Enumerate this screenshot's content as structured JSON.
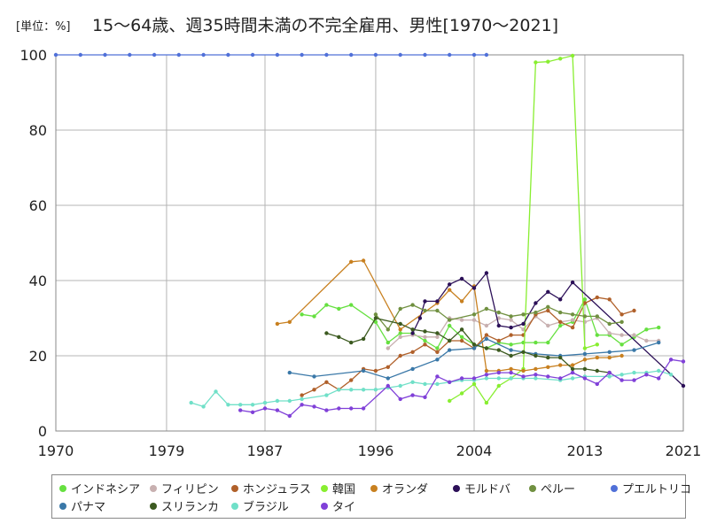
{
  "chart_data": {
    "type": "line",
    "title_unit": "[単位：%]",
    "title": "15～64歳、週35時間未満の不完全雇用、男性[1970～2021]",
    "xlabel": "",
    "ylabel": "",
    "xlim": [
      1970,
      2021
    ],
    "ylim": [
      0,
      100
    ],
    "x_ticks": [
      "1970",
      "1979",
      "1987",
      "1996",
      "2004",
      "2013",
      "2021"
    ],
    "y_ticks": [
      "0",
      "20",
      "40",
      "60",
      "80",
      "100"
    ],
    "grid": true,
    "legend_position": "bottom",
    "series": [
      {
        "name": "インドネシア",
        "color": "#66e040",
        "points": [
          [
            1990,
            31
          ],
          [
            1991,
            30.5
          ],
          [
            1992,
            33.5
          ],
          [
            1993,
            32.5
          ],
          [
            1994,
            33.5
          ],
          [
            1996,
            29
          ],
          [
            1997,
            23.5
          ],
          [
            1998,
            26
          ],
          [
            1999,
            26
          ],
          [
            2000,
            24
          ],
          [
            2001,
            22
          ],
          [
            2002,
            28
          ],
          [
            2003,
            25
          ],
          [
            2004,
            23
          ],
          [
            2005,
            22
          ],
          [
            2006,
            23.5
          ],
          [
            2007,
            23
          ],
          [
            2008,
            23.5
          ],
          [
            2009,
            23.5
          ],
          [
            2010,
            23.5
          ],
          [
            2011,
            28
          ],
          [
            2012,
            29
          ],
          [
            2013,
            35
          ],
          [
            2014,
            25.5
          ],
          [
            2015,
            25.5
          ],
          [
            2016,
            23
          ],
          [
            2017,
            25
          ],
          [
            2018,
            27
          ],
          [
            2019,
            27.5
          ]
        ]
      },
      {
        "name": "フィリピン",
        "color": "#c8b0b0",
        "points": [
          [
            1997,
            22
          ],
          [
            1998,
            25
          ],
          [
            1999,
            25.5
          ],
          [
            2000,
            25
          ],
          [
            2001,
            25
          ],
          [
            2002,
            30
          ],
          [
            2003,
            29.5
          ],
          [
            2004,
            29.5
          ],
          [
            2005,
            28
          ],
          [
            2006,
            30
          ],
          [
            2007,
            29.5
          ],
          [
            2008,
            27
          ],
          [
            2009,
            30.5
          ],
          [
            2010,
            28
          ],
          [
            2011,
            29
          ],
          [
            2012,
            29.5
          ],
          [
            2013,
            29
          ],
          [
            2014,
            30
          ],
          [
            2015,
            26
          ],
          [
            2016,
            25.5
          ],
          [
            2017,
            25.5
          ],
          [
            2018,
            24
          ],
          [
            2019,
            24
          ]
        ]
      },
      {
        "name": "ホンジュラス",
        "color": "#b0602a",
        "points": [
          [
            1990,
            9.5
          ],
          [
            1991,
            11
          ],
          [
            1992,
            13
          ],
          [
            1993,
            11
          ],
          [
            1994,
            13.5
          ],
          [
            1995,
            16.5
          ],
          [
            1996,
            16
          ],
          [
            1997,
            17
          ],
          [
            1998,
            20
          ],
          [
            1999,
            21
          ],
          [
            2000,
            23
          ],
          [
            2001,
            21
          ],
          [
            2002,
            24
          ],
          [
            2003,
            24
          ],
          [
            2004,
            22
          ],
          [
            2005,
            25.5
          ],
          [
            2006,
            24
          ],
          [
            2007,
            25.5
          ],
          [
            2008,
            25.5
          ],
          [
            2009,
            31
          ],
          [
            2010,
            32
          ],
          [
            2011,
            29
          ],
          [
            2012,
            27.5
          ],
          [
            2013,
            34
          ],
          [
            2014,
            35.5
          ],
          [
            2015,
            35
          ],
          [
            2016,
            31
          ],
          [
            2017,
            32
          ]
        ]
      },
      {
        "name": "韓国",
        "color": "#88ee30",
        "points": [
          [
            2002,
            8
          ],
          [
            2003,
            10
          ],
          [
            2004,
            12.5
          ],
          [
            2005,
            7.5
          ],
          [
            2006,
            12
          ],
          [
            2007,
            14
          ],
          [
            2008,
            16.5
          ],
          [
            2009,
            98
          ],
          [
            2010,
            98.2
          ],
          [
            2011,
            99
          ],
          [
            2012,
            99.8
          ],
          [
            2013,
            22
          ],
          [
            2014,
            23
          ]
        ]
      },
      {
        "name": "オランダ",
        "color": "#c88020",
        "points": [
          [
            1988,
            28.5
          ],
          [
            1989,
            29
          ],
          [
            1994,
            45
          ],
          [
            1995,
            45.3
          ],
          [
            1998,
            27
          ],
          [
            2001,
            34
          ],
          [
            2002,
            37.5
          ],
          [
            2003,
            34.5
          ],
          [
            2004,
            38.5
          ],
          [
            2005,
            16
          ],
          [
            2006,
            16
          ],
          [
            2007,
            16.5
          ],
          [
            2008,
            16
          ],
          [
            2009,
            16.5
          ],
          [
            2010,
            17
          ],
          [
            2011,
            17.5
          ],
          [
            2012,
            17.5
          ],
          [
            2013,
            19
          ],
          [
            2014,
            19.5
          ],
          [
            2015,
            19.5
          ],
          [
            2016,
            20
          ]
        ]
      },
      {
        "name": "モルドバ",
        "color": "#2c1058",
        "points": [
          [
            1999,
            26
          ],
          [
            1999.6,
            30
          ],
          [
            2000,
            34.5
          ],
          [
            2001,
            34.5
          ],
          [
            2002,
            39
          ],
          [
            2003,
            40.5
          ],
          [
            2004,
            38
          ],
          [
            2005,
            42
          ],
          [
            2006,
            28
          ],
          [
            2007,
            27.5
          ],
          [
            2008,
            28.5
          ],
          [
            2009,
            34
          ],
          [
            2010,
            37
          ],
          [
            2011,
            35
          ],
          [
            2012,
            39.5
          ],
          [
            2021,
            12
          ]
        ]
      },
      {
        "name": "ペルー",
        "color": "#709040",
        "points": [
          [
            1996,
            31
          ],
          [
            1997,
            27
          ],
          [
            1998,
            32.5
          ],
          [
            1999,
            33.5
          ],
          [
            2000,
            32
          ],
          [
            2001,
            32
          ],
          [
            2002,
            29.5
          ],
          [
            2004,
            31
          ],
          [
            2005,
            32.5
          ],
          [
            2006,
            31.5
          ],
          [
            2007,
            30.5
          ],
          [
            2008,
            31
          ],
          [
            2009,
            31.5
          ],
          [
            2010,
            33
          ],
          [
            2011,
            31.5
          ],
          [
            2012,
            31
          ],
          [
            2013,
            30.5
          ],
          [
            2014,
            30.5
          ],
          [
            2015,
            28.5
          ],
          [
            2016,
            29
          ]
        ]
      },
      {
        "name": "プエルトリコ",
        "color": "#5070d8",
        "points": [
          [
            1970,
            100
          ],
          [
            1972,
            100
          ],
          [
            1974,
            100
          ],
          [
            1976,
            100
          ],
          [
            1978,
            100
          ],
          [
            1980,
            100
          ],
          [
            1982,
            100
          ],
          [
            1984,
            100
          ],
          [
            1986,
            100
          ],
          [
            1988,
            100
          ],
          [
            1990,
            100
          ],
          [
            1992,
            100
          ],
          [
            1994,
            100
          ],
          [
            1996,
            100
          ],
          [
            1998,
            100
          ],
          [
            2000,
            100
          ],
          [
            2002,
            100
          ],
          [
            2004,
            100
          ],
          [
            2005,
            100
          ]
        ]
      },
      {
        "name": "パナマ",
        "color": "#3a78a8",
        "points": [
          [
            1989,
            15.5
          ],
          [
            1991,
            14.5
          ],
          [
            1995,
            16
          ],
          [
            1997,
            14
          ],
          [
            1999,
            16.5
          ],
          [
            2001,
            19
          ],
          [
            2002,
            21.5
          ],
          [
            2004,
            22
          ],
          [
            2005,
            24.5
          ],
          [
            2007,
            21.5
          ],
          [
            2009,
            20.5
          ],
          [
            2011,
            20
          ],
          [
            2013,
            20.5
          ],
          [
            2015,
            21
          ],
          [
            2017,
            21.5
          ],
          [
            2019,
            23.5
          ]
        ]
      },
      {
        "name": "スリランカ",
        "color": "#3c5a20",
        "points": [
          [
            1992,
            26
          ],
          [
            1993,
            25
          ],
          [
            1994,
            23.5
          ],
          [
            1995,
            24.5
          ],
          [
            1996,
            30
          ],
          [
            1998,
            28.5
          ],
          [
            1999,
            27
          ],
          [
            2000,
            26.5
          ],
          [
            2001,
            26
          ],
          [
            2002,
            24
          ],
          [
            2003,
            27
          ],
          [
            2004,
            23
          ],
          [
            2005,
            22
          ],
          [
            2006,
            21.5
          ],
          [
            2007,
            20
          ],
          [
            2008,
            21
          ],
          [
            2009,
            20
          ],
          [
            2010,
            19.5
          ],
          [
            2011,
            19.5
          ],
          [
            2012,
            16.5
          ],
          [
            2013,
            16.5
          ],
          [
            2014,
            16
          ],
          [
            2015,
            15.5
          ]
        ]
      },
      {
        "name": "ブラジル",
        "color": "#70e0c8",
        "points": [
          [
            1981,
            7.5
          ],
          [
            1982,
            6.5
          ],
          [
            1983,
            10.5
          ],
          [
            1984,
            7
          ],
          [
            1985,
            7
          ],
          [
            1986,
            7
          ],
          [
            1987,
            7.5
          ],
          [
            1988,
            8
          ],
          [
            1989,
            8
          ],
          [
            1990,
            8.5
          ],
          [
            1992,
            9.5
          ],
          [
            1993,
            11
          ],
          [
            1994,
            11
          ],
          [
            1995,
            11
          ],
          [
            1996,
            11
          ],
          [
            1997,
            11.5
          ],
          [
            1998,
            12
          ],
          [
            1999,
            13
          ],
          [
            2000,
            12.5
          ],
          [
            2001,
            12.5
          ],
          [
            2002,
            13
          ],
          [
            2003,
            13.5
          ],
          [
            2004,
            13.5
          ],
          [
            2005,
            14
          ],
          [
            2006,
            14
          ],
          [
            2007,
            14
          ],
          [
            2008,
            14
          ],
          [
            2009,
            14
          ],
          [
            2011,
            13.5
          ],
          [
            2012,
            14
          ],
          [
            2013,
            14.5
          ],
          [
            2015,
            14.5
          ],
          [
            2016,
            15
          ],
          [
            2017,
            15.5
          ],
          [
            2018,
            15.5
          ],
          [
            2019,
            16
          ],
          [
            2020,
            15
          ]
        ]
      },
      {
        "name": "タイ",
        "color": "#8040d8",
        "points": [
          [
            1985,
            5.5
          ],
          [
            1986,
            5
          ],
          [
            1987,
            6
          ],
          [
            1988,
            5.5
          ],
          [
            1989,
            4
          ],
          [
            1990,
            7
          ],
          [
            1991,
            6.5
          ],
          [
            1992,
            5.5
          ],
          [
            1993,
            6
          ],
          [
            1994,
            6
          ],
          [
            1995,
            6
          ],
          [
            1997,
            12
          ],
          [
            1998,
            8.5
          ],
          [
            1999,
            9.5
          ],
          [
            2000,
            9
          ],
          [
            2001,
            14.5
          ],
          [
            2002,
            13
          ],
          [
            2003,
            14
          ],
          [
            2004,
            14
          ],
          [
            2005,
            15
          ],
          [
            2006,
            15.5
          ],
          [
            2007,
            15.5
          ],
          [
            2008,
            14.5
          ],
          [
            2009,
            15
          ],
          [
            2010,
            14.5
          ],
          [
            2011,
            14
          ],
          [
            2012,
            15.5
          ],
          [
            2013,
            14
          ],
          [
            2014,
            12.5
          ],
          [
            2015,
            15.5
          ],
          [
            2016,
            13.5
          ],
          [
            2017,
            13.5
          ],
          [
            2018,
            15
          ],
          [
            2019,
            14
          ],
          [
            2020,
            19
          ],
          [
            2021,
            18.5
          ]
        ]
      }
    ]
  }
}
